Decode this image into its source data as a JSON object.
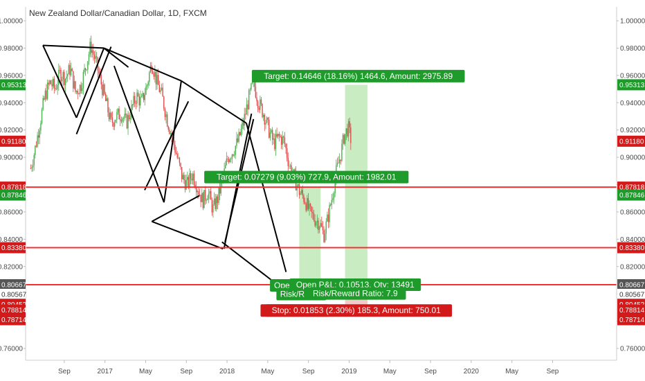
{
  "chart_data": {
    "type": "candlestick",
    "title": "New Zealand Dollar/Canadian Dollar, 1D, FXCM",
    "y_axis": {
      "range": [
        0.752,
        1.005
      ],
      "ticks": [
        "1.00000",
        "0.98000",
        "0.96000",
        "0.94000",
        "0.92000",
        "0.90000",
        "0.88000",
        "0.86000",
        "0.84000",
        "0.82000",
        "0.80000",
        "0.78000",
        "0.76000"
      ],
      "tick_values": [
        1.0,
        0.98,
        0.96,
        0.94,
        0.92,
        0.9,
        0.88,
        0.86,
        0.84,
        0.82,
        0.8,
        0.78,
        0.76
      ]
    },
    "x_axis": {
      "ticks": [
        {
          "label": "Sep",
          "t": 0.4
        },
        {
          "label": "2017",
          "t": 4.4
        },
        {
          "label": "May",
          "t": 8.4
        },
        {
          "label": "Sep",
          "t": 12.4
        },
        {
          "label": "2018",
          "t": 16.4
        },
        {
          "label": "May",
          "t": 20.4
        },
        {
          "label": "Sep",
          "t": 24.4
        },
        {
          "label": "2019",
          "t": 28.4
        },
        {
          "label": "May",
          "t": 32.4
        },
        {
          "label": "Sep",
          "t": 36.4
        },
        {
          "label": "2020",
          "t": 40.4
        },
        {
          "label": "May",
          "t": 44.4
        },
        {
          "label": "Sep",
          "t": 48.4
        }
      ]
    },
    "price_path": [
      [
        -2.9,
        0.892
      ],
      [
        -2.5,
        0.905
      ],
      [
        -2,
        0.925
      ],
      [
        -1.5,
        0.945
      ],
      [
        -1,
        0.955
      ],
      [
        -0.5,
        0.95
      ],
      [
        0,
        0.962
      ],
      [
        0.5,
        0.958
      ],
      [
        1,
        0.965
      ],
      [
        1.5,
        0.948
      ],
      [
        2,
        0.952
      ],
      [
        2.5,
        0.966
      ],
      [
        3,
        0.982
      ],
      [
        3.5,
        0.97
      ],
      [
        4,
        0.955
      ],
      [
        4.5,
        0.94
      ],
      [
        5,
        0.925
      ],
      [
        5.5,
        0.93
      ],
      [
        6,
        0.932
      ],
      [
        6.5,
        0.925
      ],
      [
        7,
        0.935
      ],
      [
        7.5,
        0.945
      ],
      [
        8,
        0.94
      ],
      [
        8.5,
        0.952
      ],
      [
        9,
        0.97
      ],
      [
        9.5,
        0.955
      ],
      [
        10,
        0.945
      ],
      [
        10.5,
        0.928
      ],
      [
        11,
        0.915
      ],
      [
        11.5,
        0.9
      ],
      [
        12,
        0.885
      ],
      [
        12.5,
        0.88
      ],
      [
        13,
        0.888
      ],
      [
        13.5,
        0.878
      ],
      [
        14,
        0.868
      ],
      [
        14.5,
        0.875
      ],
      [
        15,
        0.862
      ],
      [
        15.5,
        0.87
      ],
      [
        16,
        0.885
      ],
      [
        16.5,
        0.9
      ],
      [
        17,
        0.905
      ],
      [
        17.5,
        0.912
      ],
      [
        18,
        0.925
      ],
      [
        18.5,
        0.942
      ],
      [
        19,
        0.955
      ],
      [
        19.5,
        0.94
      ],
      [
        20,
        0.932
      ],
      [
        20.5,
        0.92
      ],
      [
        21,
        0.91
      ],
      [
        21.5,
        0.915
      ],
      [
        22,
        0.912
      ],
      [
        22.5,
        0.895
      ],
      [
        23,
        0.885
      ],
      [
        23.5,
        0.875
      ],
      [
        24,
        0.87
      ],
      [
        24.5,
        0.86
      ],
      [
        25,
        0.855
      ],
      [
        25.5,
        0.852
      ],
      [
        25.9,
        0.843
      ],
      [
        26.3,
        0.855
      ],
      [
        26.7,
        0.87
      ],
      [
        27.1,
        0.888
      ],
      [
        27.5,
        0.9
      ],
      [
        27.9,
        0.915
      ],
      [
        28.3,
        0.922
      ],
      [
        28.6,
        0.912
      ]
    ],
    "pattern_lines": [
      [
        [
          -1.7,
          0.982
        ],
        [
          1.6,
          0.929
        ]
      ],
      [
        [
          1.6,
          0.929
        ],
        [
          4.3,
          0.98
        ]
      ],
      [
        [
          -1.7,
          0.982
        ],
        [
          4.3,
          0.98
        ]
      ],
      [
        [
          4.3,
          0.98
        ],
        [
          11.9,
          0.956
        ]
      ],
      [
        [
          1.6,
          0.917
        ],
        [
          5.0,
          0.981
        ]
      ],
      [
        [
          4.3,
          0.98
        ],
        [
          6.7,
          0.966
        ]
      ],
      [
        [
          5.3,
          0.967
        ],
        [
          10.2,
          0.867
        ]
      ],
      [
        [
          10.2,
          0.867
        ],
        [
          11.9,
          0.956
        ]
      ],
      [
        [
          11.9,
          0.956
        ],
        [
          18.3,
          0.925
        ]
      ],
      [
        [
          8.3,
          0.876
        ],
        [
          12.6,
          0.941
        ]
      ],
      [
        [
          9.0,
          0.853
        ],
        [
          16.0,
          0.833
        ]
      ],
      [
        [
          16.1,
          0.833
        ],
        [
          18.8,
          0.932
        ]
      ],
      [
        [
          18.3,
          0.925
        ],
        [
          22.2,
          0.816
        ]
      ],
      [
        [
          16.2,
          0.838
        ],
        [
          19.0,
          0.928
        ]
      ],
      [
        [
          9.0,
          0.853
        ],
        [
          13.7,
          0.872
        ]
      ],
      [
        [
          15.9,
          0.838
        ],
        [
          21.3,
          0.807
        ]
      ]
    ],
    "horizontal_levels": [
      0.87818,
      0.8338,
      0.80667
    ],
    "position_zones": [
      {
        "t1": 23.5,
        "t2": 25.6,
        "top": 0.8782,
        "bottom": 0.8066,
        "color": "#c9ecc3"
      },
      {
        "t1": 28.0,
        "t2": 30.2,
        "top": 0.9531,
        "bottom": 0.8066,
        "color": "#c9ecc3"
      },
      {
        "t1": 28.0,
        "t2": 30.2,
        "top": 0.8066,
        "bottom": 0.7878,
        "color": "#f4c9c9"
      }
    ],
    "price_labels": [
      {
        "text": "0.95313",
        "value": 0.95313,
        "color": "#1e9b2a"
      },
      {
        "text": "0.91180",
        "value": 0.9118,
        "color": "#d31a1a"
      },
      {
        "text": "0.87818",
        "value": 0.87818,
        "color": "#d31a1a"
      },
      {
        "text": "0.87846",
        "value": 0.87846,
        "color": "#1e9b2a",
        "nudge": 1
      },
      {
        "text": "0.83380",
        "value": 0.8338,
        "color": "#d31a1a"
      },
      {
        "text": "0.80667",
        "value": 0.80667,
        "color": "#555555"
      },
      {
        "text": "0.80567",
        "value": 0.80567,
        "color": "#ffffff",
        "textcolor": "#333333",
        "nudge": 1
      },
      {
        "text": "0.80452",
        "value": 0.80452,
        "color": "#d31a1a",
        "nudge": 2
      },
      {
        "text": "0.78814",
        "value": 0.78814,
        "color": "#d31a1a"
      },
      {
        "text": "0.78714",
        "value": 0.78714,
        "color": "#d31a1a",
        "nudge": 1
      }
    ],
    "annotations": [
      {
        "text": "Target: 0.14646 (18.16%) 1464.6, Amount: 2975.89",
        "t": 29.3,
        "value": 0.9595,
        "color": "#1e9b2a"
      },
      {
        "text": "Target: 0.07279 (9.03%) 727.9, Amount: 1982.01",
        "t": 24.2,
        "value": 0.8855,
        "color": "#1e9b2a"
      },
      {
        "text": "Open P&L: 0.1",
        "t": 23.7,
        "value": 0.8062,
        "color": "#1e9b2a"
      },
      {
        "text": "Risk/Rewar",
        "t": 23.7,
        "value": 0.7998,
        "color": "#1e9b2a"
      },
      {
        "text": "Open P&L: 0.10513, Qty: 13491",
        "t": 29.0,
        "value": 0.8067,
        "color": "#1e9b2a"
      },
      {
        "text": "Risk/Reward Ratio: 7.9",
        "t": 29.0,
        "value": 0.8003,
        "color": "#1e9b2a"
      },
      {
        "text": "Stop: 0.01853",
        "t": 23.3,
        "value": 0.7878,
        "color": "#d31a1a"
      },
      {
        "text": "Stop: 0.01853 (2.30%) 185.3, Amount: 750.01",
        "t": 29.1,
        "value": 0.7878,
        "color": "#d31a1a"
      }
    ],
    "colors": {
      "up": "#4caf50",
      "down": "#e04b4b",
      "lines": "#000000",
      "level": "#f23030"
    }
  }
}
